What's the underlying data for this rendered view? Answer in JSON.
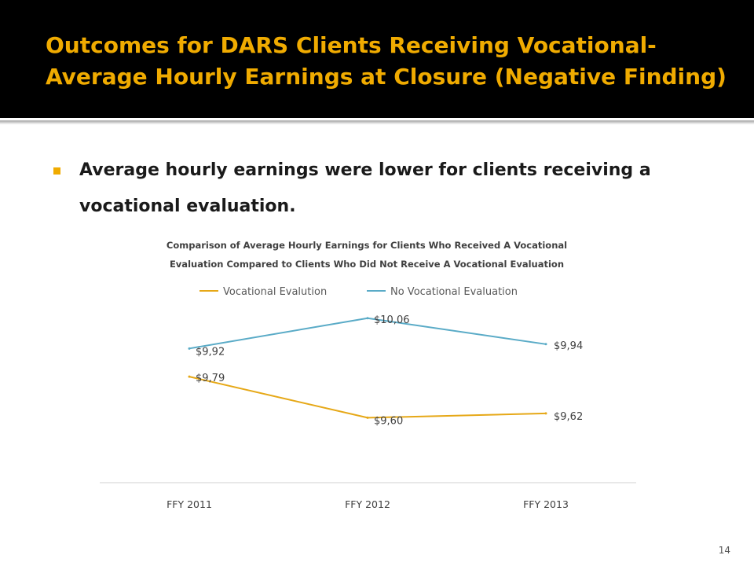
{
  "slide": {
    "title": "Outcomes for DARS Clients Receiving Vocational- Average Hourly Earnings at Closure (Negative Finding)",
    "bullet": "Average hourly earnings were lower for clients receiving a vocational evaluation.",
    "page_number": "14"
  },
  "colors": {
    "accent": "#f0ab00",
    "header_bg": "#000000"
  },
  "chart_data": {
    "type": "line",
    "title_lines": [
      "Comparison of Average Hourly Earnings for Clients Who Received A Vocational",
      "Evaluation Compared to Clients Who Did Not Receive A Vocational Evaluation"
    ],
    "categories": [
      "FFY 2011",
      "FFY 2012",
      "FFY 2013"
    ],
    "series": [
      {
        "name": "Vocational Evalution",
        "values": [
          9.79,
          9.6,
          9.62
        ],
        "labels": [
          "$9,79",
          "$9,60",
          "$9,62"
        ],
        "color": "#e6a817"
      },
      {
        "name": "No Vocational Evaluation",
        "values": [
          9.92,
          10.06,
          9.94
        ],
        "labels": [
          "$9,92",
          "$10,06",
          "$9,94"
        ],
        "color": "#5aabc7"
      }
    ],
    "ylim": [
      9.3,
      10.15
    ],
    "grid": false,
    "legend": "top"
  }
}
